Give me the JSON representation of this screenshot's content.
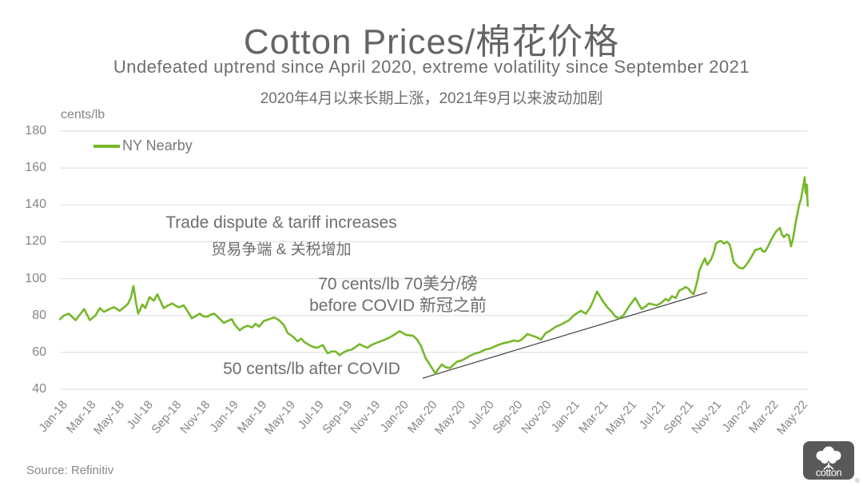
{
  "header": {
    "title": "Cotton Prices/棉花价格",
    "subtitle_en": "Undefeated uptrend since April 2020, extreme volatility since September 2021",
    "subtitle_zh": "2020年4月以来长期上涨，2021年9月以来波动加剧"
  },
  "annotations": {
    "trade_dispute_en": "Trade dispute & tariff increases",
    "trade_dispute_zh": "贸易争端 & 关税增加",
    "before_covid_line1": "70 cents/lb 70美分/磅",
    "before_covid_line2": "before COVID 新冠之前",
    "after_covid": "50 cents/lb after COVID"
  },
  "footer": {
    "source": "Source: Refinitiv",
    "logo_word": "cotton",
    "registered_mark": "®"
  },
  "colors": {
    "line_green": "#76b82a",
    "trendline_gray": "#3f3f3f",
    "text_gray": "#6d6e71",
    "tick_gray": "#848689",
    "grid_gray": "#e4e5e6",
    "logo_bg": "#58595b"
  },
  "chart_data": {
    "type": "line",
    "title": "Cotton Prices/棉花价格",
    "ylabel": "cents/lb",
    "ylim": [
      40,
      180
    ],
    "y_ticks": [
      40,
      60,
      80,
      100,
      120,
      140,
      160,
      180
    ],
    "grid": "horizontal",
    "legend_position": "top-left",
    "x_unit": "months_since_Jan-2018",
    "x_tick_step": 2,
    "x_tick_labels": [
      "Jan-18",
      "Mar-18",
      "May-18",
      "Jul-18",
      "Sep-18",
      "Nov-18",
      "Jan-19",
      "Mar-19",
      "May-19",
      "Jul-19",
      "Sep-19",
      "Nov-19",
      "Jan-20",
      "Mar-20",
      "May-20",
      "Jul-20",
      "Sep-20",
      "Nov-20",
      "Jan-21",
      "Mar-21",
      "May-21",
      "Jul-21",
      "Sep-21",
      "Nov-21",
      "Jan-22",
      "Mar-22",
      "May-22"
    ],
    "trendline": {
      "from": [
        25.5,
        46
      ],
      "to": [
        45.5,
        92.5
      ],
      "note": "support line from COVID low to pre-surge level"
    },
    "series": [
      {
        "name": "NY Nearby",
        "color": "#76b82a",
        "unit": "cents/lb",
        "points": [
          [
            0,
            78
          ],
          [
            0.3,
            80
          ],
          [
            0.62,
            81
          ],
          [
            1.1,
            77.5
          ],
          [
            1.7,
            83.5
          ],
          [
            2.1,
            77.5
          ],
          [
            2.5,
            80
          ],
          [
            2.8,
            84
          ],
          [
            3.1,
            82
          ],
          [
            3.5,
            83.5
          ],
          [
            3.8,
            84.5
          ],
          [
            4.2,
            82.5
          ],
          [
            4.6,
            85
          ],
          [
            4.8,
            86.5
          ],
          [
            5.0,
            90
          ],
          [
            5.17,
            96
          ],
          [
            5.35,
            87
          ],
          [
            5.5,
            81
          ],
          [
            5.8,
            86
          ],
          [
            6.0,
            84
          ],
          [
            6.3,
            90
          ],
          [
            6.6,
            88
          ],
          [
            6.85,
            91.5
          ],
          [
            7.3,
            84
          ],
          [
            7.6,
            85.5
          ],
          [
            7.9,
            86.5
          ],
          [
            8.2,
            85
          ],
          [
            8.4,
            84.5
          ],
          [
            8.7,
            85.5
          ],
          [
            9.0,
            82
          ],
          [
            9.27,
            78.5
          ],
          [
            9.6,
            80
          ],
          [
            9.83,
            81
          ],
          [
            10.1,
            79.5
          ],
          [
            10.4,
            79.5
          ],
          [
            10.6,
            80.5
          ],
          [
            10.84,
            81
          ],
          [
            11.2,
            78.5
          ],
          [
            11.52,
            76
          ],
          [
            11.8,
            77
          ],
          [
            12.08,
            78
          ],
          [
            12.3,
            75
          ],
          [
            12.64,
            72
          ],
          [
            12.9,
            73.5
          ],
          [
            13.2,
            74.5
          ],
          [
            13.5,
            73.5
          ],
          [
            13.76,
            75.5
          ],
          [
            14.0,
            74
          ],
          [
            14.33,
            77
          ],
          [
            14.7,
            78
          ],
          [
            15.06,
            79
          ],
          [
            15.4,
            77.5
          ],
          [
            15.73,
            75
          ],
          [
            16.01,
            70.5
          ],
          [
            16.2,
            69.5
          ],
          [
            16.46,
            68
          ],
          [
            16.7,
            66
          ],
          [
            16.97,
            67.5
          ],
          [
            17.2,
            65.5
          ],
          [
            17.53,
            64
          ],
          [
            17.8,
            63
          ],
          [
            18.09,
            62.5
          ],
          [
            18.48,
            64
          ],
          [
            18.82,
            59.5
          ],
          [
            19.1,
            60.5
          ],
          [
            19.38,
            60.5
          ],
          [
            19.66,
            58.5
          ],
          [
            19.94,
            60
          ],
          [
            20.2,
            61
          ],
          [
            20.51,
            61.5
          ],
          [
            20.8,
            63
          ],
          [
            21.07,
            64.5
          ],
          [
            21.3,
            63.5
          ],
          [
            21.63,
            62.5
          ],
          [
            21.9,
            64
          ],
          [
            22.36,
            65.5
          ],
          [
            22.7,
            66.5
          ],
          [
            23.15,
            68
          ],
          [
            23.5,
            69.5
          ],
          [
            23.88,
            71.5
          ],
          [
            24.33,
            69.5
          ],
          [
            24.83,
            69
          ],
          [
            25.1,
            67
          ],
          [
            25.39,
            63.5
          ],
          [
            25.7,
            57
          ],
          [
            26.12,
            52
          ],
          [
            26.4,
            48.5
          ],
          [
            26.6,
            51
          ],
          [
            26.85,
            53.5
          ],
          [
            27.1,
            52
          ],
          [
            27.42,
            51.5
          ],
          [
            27.7,
            53.5
          ],
          [
            27.92,
            55
          ],
          [
            28.2,
            55.5
          ],
          [
            28.48,
            56.5
          ],
          [
            28.8,
            58
          ],
          [
            29.21,
            59.5
          ],
          [
            29.5,
            60
          ],
          [
            29.89,
            61.5
          ],
          [
            30.2,
            62
          ],
          [
            30.51,
            63
          ],
          [
            30.8,
            64
          ],
          [
            31.18,
            65
          ],
          [
            31.5,
            65.5
          ],
          [
            31.91,
            66.5
          ],
          [
            32.2,
            66
          ],
          [
            32.47,
            67
          ],
          [
            32.87,
            70
          ],
          [
            33.2,
            69
          ],
          [
            33.43,
            68.5
          ],
          [
            33.82,
            67
          ],
          [
            34.16,
            70.5
          ],
          [
            34.5,
            72
          ],
          [
            34.89,
            74
          ],
          [
            35.2,
            75
          ],
          [
            35.45,
            76
          ],
          [
            35.8,
            77.5
          ],
          [
            36.12,
            80
          ],
          [
            36.4,
            81.5
          ],
          [
            36.63,
            82.5
          ],
          [
            36.97,
            81
          ],
          [
            37.25,
            84
          ],
          [
            37.47,
            87.5
          ],
          [
            37.75,
            93
          ],
          [
            38.0,
            90
          ],
          [
            38.15,
            88
          ],
          [
            38.48,
            84.5
          ],
          [
            38.8,
            82
          ],
          [
            39.04,
            79.5
          ],
          [
            39.3,
            78.5
          ],
          [
            39.61,
            80
          ],
          [
            39.85,
            83
          ],
          [
            40.06,
            85.5
          ],
          [
            40.45,
            89.5
          ],
          [
            40.7,
            86
          ],
          [
            40.9,
            83.5
          ],
          [
            41.2,
            85
          ],
          [
            41.4,
            86.5
          ],
          [
            41.7,
            86
          ],
          [
            41.97,
            85.5
          ],
          [
            42.3,
            87
          ],
          [
            42.58,
            89
          ],
          [
            42.8,
            88
          ],
          [
            43.03,
            90.5
          ],
          [
            43.3,
            89.5
          ],
          [
            43.54,
            93.5
          ],
          [
            43.8,
            94.5
          ],
          [
            43.99,
            95.5
          ],
          [
            44.2,
            94.5
          ],
          [
            44.33,
            93
          ],
          [
            44.55,
            91.5
          ],
          [
            44.72,
            96
          ],
          [
            44.85,
            100
          ],
          [
            44.94,
            104
          ],
          [
            45.1,
            107
          ],
          [
            45.34,
            111
          ],
          [
            45.51,
            107.5
          ],
          [
            45.79,
            110.5
          ],
          [
            46.0,
            115
          ],
          [
            46.12,
            119
          ],
          [
            46.3,
            120
          ],
          [
            46.46,
            120.5
          ],
          [
            46.7,
            119
          ],
          [
            46.9,
            120
          ],
          [
            47.08,
            118.5
          ],
          [
            47.2,
            115
          ],
          [
            47.36,
            109
          ],
          [
            47.6,
            107
          ],
          [
            47.75,
            106
          ],
          [
            48.0,
            105.5
          ],
          [
            48.15,
            106.5
          ],
          [
            48.3,
            108
          ],
          [
            48.48,
            110
          ],
          [
            48.7,
            113
          ],
          [
            48.88,
            115.5
          ],
          [
            49.1,
            116
          ],
          [
            49.27,
            116.5
          ],
          [
            49.4,
            115
          ],
          [
            49.55,
            114.5
          ],
          [
            49.75,
            117
          ],
          [
            49.94,
            120
          ],
          [
            50.15,
            123
          ],
          [
            50.34,
            125.5
          ],
          [
            50.62,
            127.5
          ],
          [
            50.75,
            124
          ],
          [
            50.9,
            122.5
          ],
          [
            51.1,
            124
          ],
          [
            51.24,
            123.5
          ],
          [
            51.4,
            117.5
          ],
          [
            51.55,
            122
          ],
          [
            51.74,
            131
          ],
          [
            51.85,
            135
          ],
          [
            51.97,
            140
          ],
          [
            52.1,
            143
          ],
          [
            52.19,
            147
          ],
          [
            52.28,
            151
          ],
          [
            52.36,
            155
          ],
          [
            52.42,
            147
          ],
          [
            52.47,
            146
          ],
          [
            52.52,
            151
          ],
          [
            52.55,
            143
          ],
          [
            52.58,
            139.5
          ]
        ]
      }
    ]
  }
}
